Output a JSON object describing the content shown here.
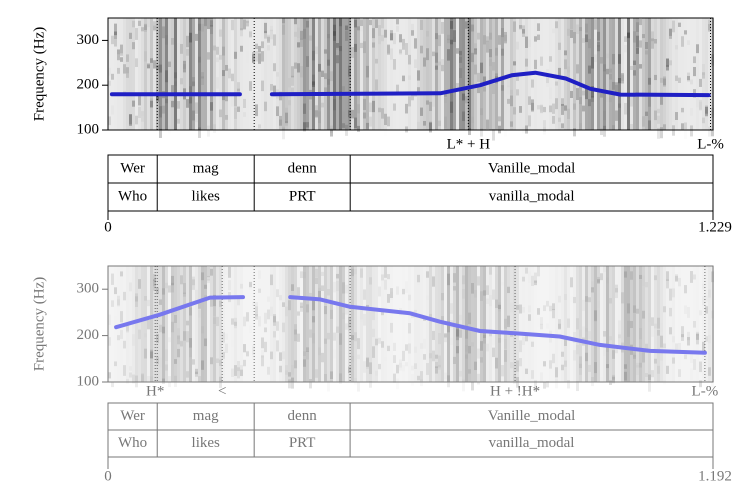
{
  "chart_data": [
    {
      "type": "line",
      "ylabel": "Frequency (Hz)",
      "ylim": [
        100,
        350
      ],
      "yticks": [
        100,
        200,
        300
      ],
      "xlim": [
        0,
        1.229
      ],
      "xticks": [
        0,
        1.229
      ],
      "series": [
        {
          "color": "#1f1fc4",
          "x": [
            0.008,
            0.268,
            0.3,
            0.333,
            0.675,
            0.756,
            0.82,
            0.868,
            0.93,
            0.98,
            1.041,
            1.22
          ],
          "values": [
            180,
            180,
            null,
            180,
            182,
            200,
            222,
            228,
            215,
            192,
            179,
            178
          ]
        }
      ],
      "tones": [
        {
          "label": "L* + H",
          "x": 0.732
        },
        {
          "label": "L-%",
          "x": 1.224
        }
      ],
      "boundaries": [
        0.1,
        0.297,
        0.492
      ],
      "tiers": [
        {
          "labels": [
            "Wer",
            "mag",
            "denn",
            "Vanille_modal"
          ]
        },
        {
          "labels": [
            "Who",
            "likes",
            "PRT",
            "vanilla_modal"
          ]
        }
      ]
    },
    {
      "type": "line",
      "ylabel": "Frequency (Hz)",
      "ylim": [
        100,
        350
      ],
      "yticks": [
        100,
        200,
        300
      ],
      "xlim": [
        0,
        1.192
      ],
      "xticks": [
        0,
        1.192
      ],
      "series": [
        {
          "color": "#7878ee",
          "x": [
            0.016,
            0.102,
            0.201,
            0.266,
            0.3,
            0.359,
            0.418,
            0.477,
            0.595,
            0.654,
            0.733,
            0.802,
            0.89,
            0.969,
            1.068,
            1.176
          ],
          "values": [
            218,
            245,
            282,
            283,
            null,
            283,
            278,
            262,
            248,
            230,
            210,
            205,
            198,
            180,
            167,
            163
          ]
        }
      ],
      "tones": [
        {
          "label": "H*",
          "x": 0.093
        },
        {
          "label": "<",
          "x": 0.225
        },
        {
          "label": "H + !H*",
          "x": 0.802
        },
        {
          "label": "L-%",
          "x": 1.176
        }
      ],
      "boundaries": [
        0.097,
        0.288,
        0.477
      ],
      "tiers": [
        {
          "labels": [
            "Wer",
            "mag",
            "denn",
            "Vanille_modal"
          ]
        },
        {
          "labels": [
            "Who",
            "likes",
            "PRT",
            "vanilla_modal"
          ]
        }
      ]
    }
  ]
}
